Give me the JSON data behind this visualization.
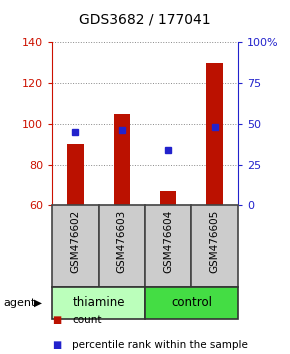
{
  "title": "GDS3682 / 177041",
  "samples": [
    "GSM476602",
    "GSM476603",
    "GSM476604",
    "GSM476605"
  ],
  "bar_bottom": 60,
  "bar_tops": [
    90,
    105,
    67,
    130
  ],
  "bar_color": "#bb1100",
  "marker_color": "#2222cc",
  "percentile_values": [
    45,
    46,
    34,
    48
  ],
  "ylim_left": [
    60,
    140
  ],
  "ylim_right": [
    0,
    100
  ],
  "yticks_left": [
    60,
    80,
    100,
    120,
    140
  ],
  "yticks_right": [
    0,
    25,
    50,
    75,
    100
  ],
  "ytick_labels_right": [
    "0",
    "25",
    "50",
    "75",
    "100%"
  ],
  "groups": [
    {
      "label": "thiamine",
      "cols": [
        0,
        1
      ],
      "color": "#bbffbb"
    },
    {
      "label": "control",
      "cols": [
        2,
        3
      ],
      "color": "#44dd44"
    }
  ],
  "agent_label": "agent",
  "legend_count_label": "count",
  "legend_pct_label": "percentile rank within the sample",
  "grid_color": "#888888",
  "background_color": "#ffffff",
  "bar_width": 0.35,
  "left_tick_color": "#cc1100",
  "right_tick_color": "#2222cc",
  "sample_box_color": "#cccccc",
  "sample_box_edge": "#444444"
}
